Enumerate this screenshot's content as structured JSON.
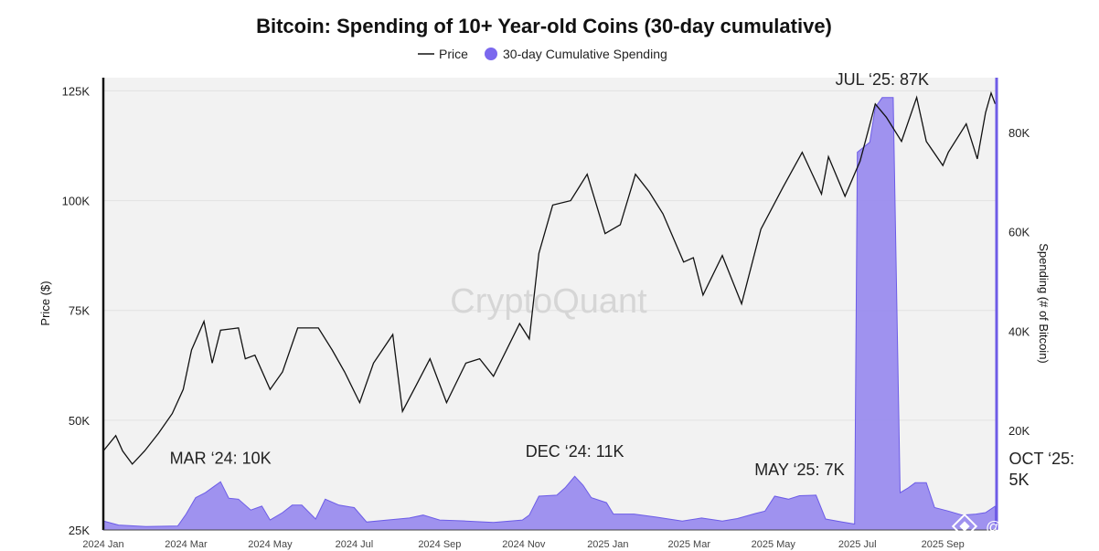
{
  "chart_data": {
    "type": "line",
    "title": "Bitcoin: Spending of 10+ Year-old Coins (30-day cumulative)",
    "legend": {
      "placement": "top-center",
      "entries": [
        {
          "label": "Price",
          "symbol": "line"
        },
        {
          "label": "30-day Cumulative Spending",
          "symbol": "circle"
        }
      ]
    },
    "watermark": "CryptoQuant",
    "brand_mark": "@ Tuệ Vấn",
    "grid": true,
    "colors": {
      "price": "#111111",
      "spending": "#7b68ee",
      "spending_fill": "#9a8cee",
      "plot_bg": "#f2f2f2",
      "right_axis": "#6f5ce6"
    },
    "x_axis": {
      "tick_labels": [
        "2024 Jan",
        "2024 Mar",
        "2024 May",
        "2024 Jul",
        "2024 Sep",
        "2024 Nov",
        "2025 Jan",
        "2025 Mar",
        "2025 May",
        "2025 Jul",
        "2025 Sep"
      ],
      "range": [
        "2024-01-01",
        "2025-10-10"
      ]
    },
    "y_left": {
      "label": "Price ($)",
      "tick_labels": [
        "25K",
        "50K",
        "75K",
        "100K",
        "125K"
      ],
      "range": [
        25000,
        128000
      ]
    },
    "y_right": {
      "label": "Spending (# of Bitcoin)",
      "tick_labels": [
        "20K",
        "40K",
        "60K",
        "80K"
      ],
      "range": [
        0,
        91000
      ]
    },
    "series": [
      {
        "name": "Price",
        "axis": "left",
        "points": [
          [
            "2024-01-01",
            43000
          ],
          [
            "2024-01-10",
            46500
          ],
          [
            "2024-01-15",
            43000
          ],
          [
            "2024-01-22",
            40000
          ],
          [
            "2024-01-31",
            43000
          ],
          [
            "2024-02-10",
            47000
          ],
          [
            "2024-02-20",
            51500
          ],
          [
            "2024-02-28",
            57000
          ],
          [
            "2024-03-05",
            66000
          ],
          [
            "2024-03-14",
            72500
          ],
          [
            "2024-03-20",
            63000
          ],
          [
            "2024-03-26",
            70500
          ],
          [
            "2024-04-08",
            71000
          ],
          [
            "2024-04-13",
            64000
          ],
          [
            "2024-04-20",
            64800
          ],
          [
            "2024-05-01",
            57000
          ],
          [
            "2024-05-10",
            61000
          ],
          [
            "2024-05-21",
            71000
          ],
          [
            "2024-06-05",
            71000
          ],
          [
            "2024-06-15",
            66000
          ],
          [
            "2024-06-24",
            61000
          ],
          [
            "2024-07-05",
            54000
          ],
          [
            "2024-07-15",
            63000
          ],
          [
            "2024-07-29",
            69500
          ],
          [
            "2024-08-05",
            52000
          ],
          [
            "2024-08-15",
            58000
          ],
          [
            "2024-08-25",
            64000
          ],
          [
            "2024-09-06",
            54000
          ],
          [
            "2024-09-20",
            63000
          ],
          [
            "2024-09-30",
            64000
          ],
          [
            "2024-10-10",
            60000
          ],
          [
            "2024-10-29",
            72000
          ],
          [
            "2024-11-05",
            68500
          ],
          [
            "2024-11-12",
            88000
          ],
          [
            "2024-11-22",
            99000
          ],
          [
            "2024-12-05",
            100000
          ],
          [
            "2024-12-17",
            106000
          ],
          [
            "2024-12-30",
            92500
          ],
          [
            "2025-01-10",
            94500
          ],
          [
            "2025-01-21",
            106000
          ],
          [
            "2025-01-31",
            102000
          ],
          [
            "2025-02-10",
            97000
          ],
          [
            "2025-02-25",
            86000
          ],
          [
            "2025-03-04",
            87000
          ],
          [
            "2025-03-11",
            78500
          ],
          [
            "2025-03-25",
            87500
          ],
          [
            "2025-04-08",
            76500
          ],
          [
            "2025-04-22",
            93500
          ],
          [
            "2025-05-08",
            103000
          ],
          [
            "2025-05-22",
            111000
          ],
          [
            "2025-06-05",
            101500
          ],
          [
            "2025-06-10",
            110000
          ],
          [
            "2025-06-22",
            101000
          ],
          [
            "2025-07-03",
            109000
          ],
          [
            "2025-07-14",
            122000
          ],
          [
            "2025-07-22",
            119000
          ],
          [
            "2025-08-02",
            113500
          ],
          [
            "2025-08-13",
            123500
          ],
          [
            "2025-08-20",
            113500
          ],
          [
            "2025-09-01",
            108000
          ],
          [
            "2025-09-05",
            111000
          ],
          [
            "2025-09-18",
            117500
          ],
          [
            "2025-09-26",
            109500
          ],
          [
            "2025-10-02",
            120000
          ],
          [
            "2025-10-06",
            124500
          ],
          [
            "2025-10-09",
            122000
          ]
        ]
      },
      {
        "name": "30-day Cumulative Spending",
        "axis": "right",
        "points": [
          [
            "2024-01-01",
            1800
          ],
          [
            "2024-01-12",
            1000
          ],
          [
            "2024-02-01",
            700
          ],
          [
            "2024-02-24",
            800
          ],
          [
            "2024-03-01",
            3200
          ],
          [
            "2024-03-08",
            6500
          ],
          [
            "2024-03-15",
            7500
          ],
          [
            "2024-03-21",
            8700
          ],
          [
            "2024-03-26",
            9700
          ],
          [
            "2024-04-01",
            6400
          ],
          [
            "2024-04-08",
            6200
          ],
          [
            "2024-04-17",
            4000
          ],
          [
            "2024-04-25",
            4800
          ],
          [
            "2024-05-01",
            2000
          ],
          [
            "2024-05-10",
            3500
          ],
          [
            "2024-05-17",
            5000
          ],
          [
            "2024-05-24",
            5000
          ],
          [
            "2024-06-03",
            2200
          ],
          [
            "2024-06-10",
            6200
          ],
          [
            "2024-06-20",
            5000
          ],
          [
            "2024-07-01",
            4500
          ],
          [
            "2024-07-10",
            1600
          ],
          [
            "2024-07-25",
            2000
          ],
          [
            "2024-08-10",
            2400
          ],
          [
            "2024-08-20",
            3000
          ],
          [
            "2024-09-01",
            2000
          ],
          [
            "2024-09-20",
            1800
          ],
          [
            "2024-10-10",
            1500
          ],
          [
            "2024-10-31",
            2000
          ],
          [
            "2024-11-05",
            3000
          ],
          [
            "2024-11-12",
            6800
          ],
          [
            "2024-11-25",
            7000
          ],
          [
            "2024-12-01",
            8500
          ],
          [
            "2024-12-08",
            10800
          ],
          [
            "2024-12-14",
            9000
          ],
          [
            "2024-12-20",
            6500
          ],
          [
            "2024-12-31",
            5500
          ],
          [
            "2025-01-05",
            3200
          ],
          [
            "2025-01-20",
            3200
          ],
          [
            "2025-02-05",
            2600
          ],
          [
            "2025-02-24",
            1800
          ],
          [
            "2025-03-10",
            2400
          ],
          [
            "2025-03-25",
            1800
          ],
          [
            "2025-04-05",
            2300
          ],
          [
            "2025-04-18",
            3300
          ],
          [
            "2025-04-25",
            3800
          ],
          [
            "2025-05-02",
            6800
          ],
          [
            "2025-05-12",
            6200
          ],
          [
            "2025-05-20",
            6900
          ],
          [
            "2025-06-01",
            7000
          ],
          [
            "2025-06-08",
            2200
          ],
          [
            "2025-06-20",
            1600
          ],
          [
            "2025-06-29",
            1200
          ],
          [
            "2025-07-01",
            76000
          ],
          [
            "2025-07-10",
            78000
          ],
          [
            "2025-07-14",
            85000
          ],
          [
            "2025-07-19",
            87000
          ],
          [
            "2025-07-27",
            87000
          ],
          [
            "2025-08-01",
            7500
          ],
          [
            "2025-08-07",
            8500
          ],
          [
            "2025-08-12",
            9500
          ],
          [
            "2025-08-20",
            9500
          ],
          [
            "2025-08-26",
            4500
          ],
          [
            "2025-09-05",
            3800
          ],
          [
            "2025-09-15",
            3000
          ],
          [
            "2025-09-25",
            3200
          ],
          [
            "2025-10-02",
            3500
          ],
          [
            "2025-10-09",
            4800
          ]
        ]
      }
    ],
    "annotations": [
      {
        "text": "MAR ‘24: 10K",
        "date": "2024-03-26",
        "value": 10000
      },
      {
        "text": "DEC ‘24: 11K",
        "date": "2024-12-08",
        "value": 11000
      },
      {
        "text": "MAY ‘25: 7K",
        "date": "2025-05-20",
        "value": 7000
      },
      {
        "text": "JUL ‘25: 87K",
        "date": "2025-07-19",
        "value": 87000
      },
      {
        "text": "OCT ‘25:",
        "date": "2025-10-09",
        "value": 5000
      },
      {
        "text": "5K",
        "date": "2025-10-09",
        "value": 5000
      }
    ]
  }
}
